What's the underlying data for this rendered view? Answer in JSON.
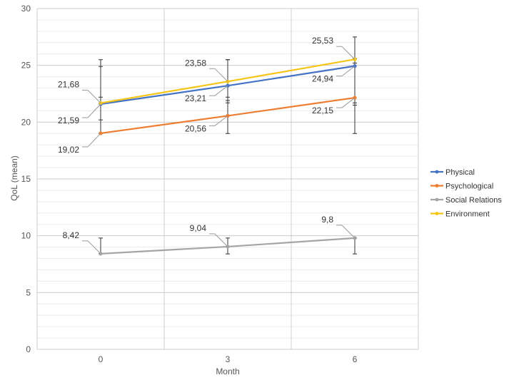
{
  "chart_data": {
    "type": "line",
    "title": "",
    "xlabel": "Month",
    "ylabel": "QoL (mean)",
    "x": [
      0,
      3,
      6
    ],
    "x_tick_labels": [
      "0",
      "3",
      "6"
    ],
    "ylim": [
      0,
      30
    ],
    "y_ticks": [
      0,
      5,
      10,
      15,
      20,
      25,
      30
    ],
    "grid": true,
    "legend_position": "right",
    "series": [
      {
        "name": "Physical",
        "color": "#4472c4",
        "values": [
          21.59,
          23.21,
          24.94
        ],
        "labels": [
          "21,59",
          "23,21",
          "24,94"
        ],
        "error_low": [
          20.2,
          21.7,
          21.5
        ],
        "error_high": [
          25.5,
          25.5,
          27.5
        ]
      },
      {
        "name": "Psychological",
        "color": "#ed7d31",
        "values": [
          19.02,
          20.56,
          22.15
        ],
        "labels": [
          "19,02",
          "20,56",
          "22,15"
        ],
        "error_low": [
          19.0,
          19.0,
          19.0
        ],
        "error_high": [
          22.2,
          22.2,
          25.2
        ]
      },
      {
        "name": "Social Relations",
        "color": "#a5a5a5",
        "values": [
          8.42,
          9.04,
          9.8
        ],
        "labels": [
          "8,42",
          "9,04",
          "9,8"
        ],
        "error_low": [
          8.42,
          8.4,
          8.4
        ],
        "error_high": [
          9.8,
          9.8,
          9.8
        ]
      },
      {
        "name": "Environment",
        "color": "#f5c518",
        "values": [
          21.68,
          23.58,
          25.53
        ],
        "labels": [
          "21,68",
          "23,58",
          "25,53"
        ],
        "error_low": [
          21.68,
          21.9,
          21.7
        ],
        "error_high": [
          24.9,
          25.5,
          25.6
        ]
      }
    ]
  }
}
